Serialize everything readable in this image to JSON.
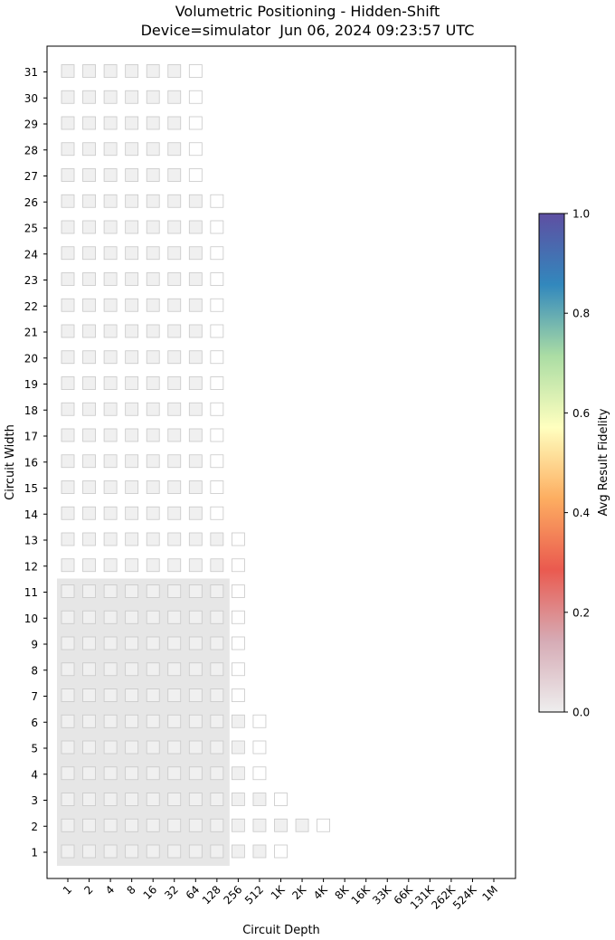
{
  "chart_data": {
    "type": "heatmap",
    "title": "Volumetric Positioning - Hidden-Shift",
    "subtitle": "Device=simulator  Jun 06, 2024 09:23:57 UTC",
    "xlabel": "Circuit Depth",
    "ylabel": "Circuit Width",
    "x_ticks": [
      "1",
      "2",
      "4",
      "8",
      "16",
      "32",
      "64",
      "128",
      "256",
      "512",
      "1K",
      "2K",
      "4K",
      "8K",
      "16K",
      "33K",
      "66K",
      "131K",
      "262K",
      "524K",
      "1M"
    ],
    "y_ticks": [
      "1",
      "2",
      "3",
      "4",
      "5",
      "6",
      "7",
      "8",
      "9",
      "10",
      "11",
      "12",
      "13",
      "14",
      "15",
      "16",
      "17",
      "18",
      "19",
      "20",
      "21",
      "22",
      "23",
      "24",
      "25",
      "26",
      "27",
      "28",
      "29",
      "30",
      "31"
    ],
    "colorbar": {
      "label": "Avg Result Fidelity",
      "ticks": [
        "0.0",
        "0.2",
        "0.4",
        "0.6",
        "0.8",
        "1.0"
      ],
      "range": [
        0,
        1
      ],
      "colors": [
        "#eeeeee",
        "#d6abb5",
        "#ea5a4f",
        "#fdae61",
        "#ffffbf",
        "#abdda4",
        "#3288bd",
        "#5e4fa2"
      ]
    },
    "highlight_region": {
      "max_depth": "128",
      "max_width": "11",
      "color": "#e6e6e6"
    },
    "cells": {
      "filled_color": "#f0f0f0",
      "filled_stroke": "#c8c8c8",
      "empty_stroke": "#c8c8c8",
      "rows": [
        {
          "width": 1,
          "filled_depths": 10,
          "empty_depths": 1
        },
        {
          "width": 2,
          "filled_depths": 12,
          "empty_depths": 1
        },
        {
          "width": 3,
          "filled_depths": 10,
          "empty_depths": 1
        },
        {
          "width": 4,
          "filled_depths": 9,
          "empty_depths": 1
        },
        {
          "width": 5,
          "filled_depths": 9,
          "empty_depths": 1
        },
        {
          "width": 6,
          "filled_depths": 9,
          "empty_depths": 1
        },
        {
          "width": 7,
          "filled_depths": 8,
          "empty_depths": 1
        },
        {
          "width": 8,
          "filled_depths": 8,
          "empty_depths": 1
        },
        {
          "width": 9,
          "filled_depths": 8,
          "empty_depths": 1
        },
        {
          "width": 10,
          "filled_depths": 8,
          "empty_depths": 1
        },
        {
          "width": 11,
          "filled_depths": 8,
          "empty_depths": 1
        },
        {
          "width": 12,
          "filled_depths": 8,
          "empty_depths": 1
        },
        {
          "width": 13,
          "filled_depths": 8,
          "empty_depths": 1
        },
        {
          "width": 14,
          "filled_depths": 7,
          "empty_depths": 1
        },
        {
          "width": 15,
          "filled_depths": 7,
          "empty_depths": 1
        },
        {
          "width": 16,
          "filled_depths": 7,
          "empty_depths": 1
        },
        {
          "width": 17,
          "filled_depths": 7,
          "empty_depths": 1
        },
        {
          "width": 18,
          "filled_depths": 7,
          "empty_depths": 1
        },
        {
          "width": 19,
          "filled_depths": 7,
          "empty_depths": 1
        },
        {
          "width": 20,
          "filled_depths": 7,
          "empty_depths": 1
        },
        {
          "width": 21,
          "filled_depths": 7,
          "empty_depths": 1
        },
        {
          "width": 22,
          "filled_depths": 7,
          "empty_depths": 1
        },
        {
          "width": 23,
          "filled_depths": 7,
          "empty_depths": 1
        },
        {
          "width": 24,
          "filled_depths": 7,
          "empty_depths": 1
        },
        {
          "width": 25,
          "filled_depths": 7,
          "empty_depths": 1
        },
        {
          "width": 26,
          "filled_depths": 7,
          "empty_depths": 1
        },
        {
          "width": 27,
          "filled_depths": 6,
          "empty_depths": 1
        },
        {
          "width": 28,
          "filled_depths": 6,
          "empty_depths": 1
        },
        {
          "width": 29,
          "filled_depths": 6,
          "empty_depths": 1
        },
        {
          "width": 30,
          "filled_depths": 6,
          "empty_depths": 1
        },
        {
          "width": 31,
          "filled_depths": 6,
          "empty_depths": 1
        }
      ]
    }
  }
}
